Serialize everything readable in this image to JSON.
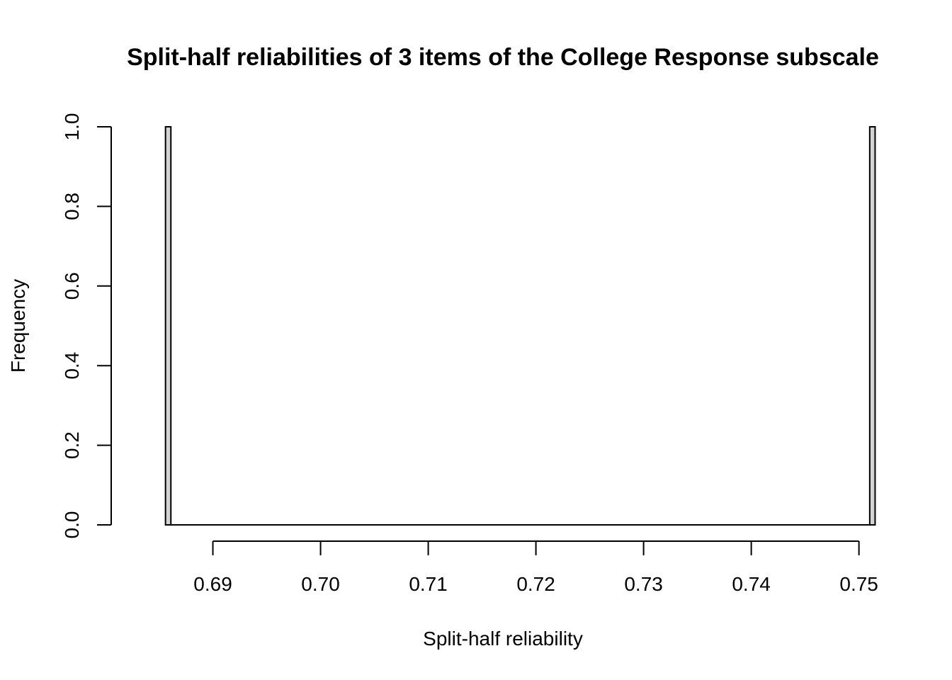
{
  "chart_data": {
    "type": "bar",
    "title": "Split-half reliabilities of 3 items of the College Response subscale",
    "xlabel": "Split-half reliability",
    "ylabel": "Frequency",
    "xlim": [
      0.6824,
      0.7518
    ],
    "ylim": [
      0,
      1
    ],
    "x_ticks": [
      "0.69",
      "0.70",
      "0.71",
      "0.72",
      "0.73",
      "0.74",
      "0.75"
    ],
    "y_ticks": [
      "0.0",
      "0.2",
      "0.4",
      "0.6",
      "0.8",
      "1.0"
    ],
    "bins": [
      {
        "x_start": 0.6856,
        "x_end": 0.6861,
        "count": 1
      },
      {
        "x_start": 0.751,
        "x_end": 0.7515,
        "count": 1
      }
    ],
    "bar_fill": "#d3d3d3",
    "grid": false,
    "legend": "none"
  }
}
